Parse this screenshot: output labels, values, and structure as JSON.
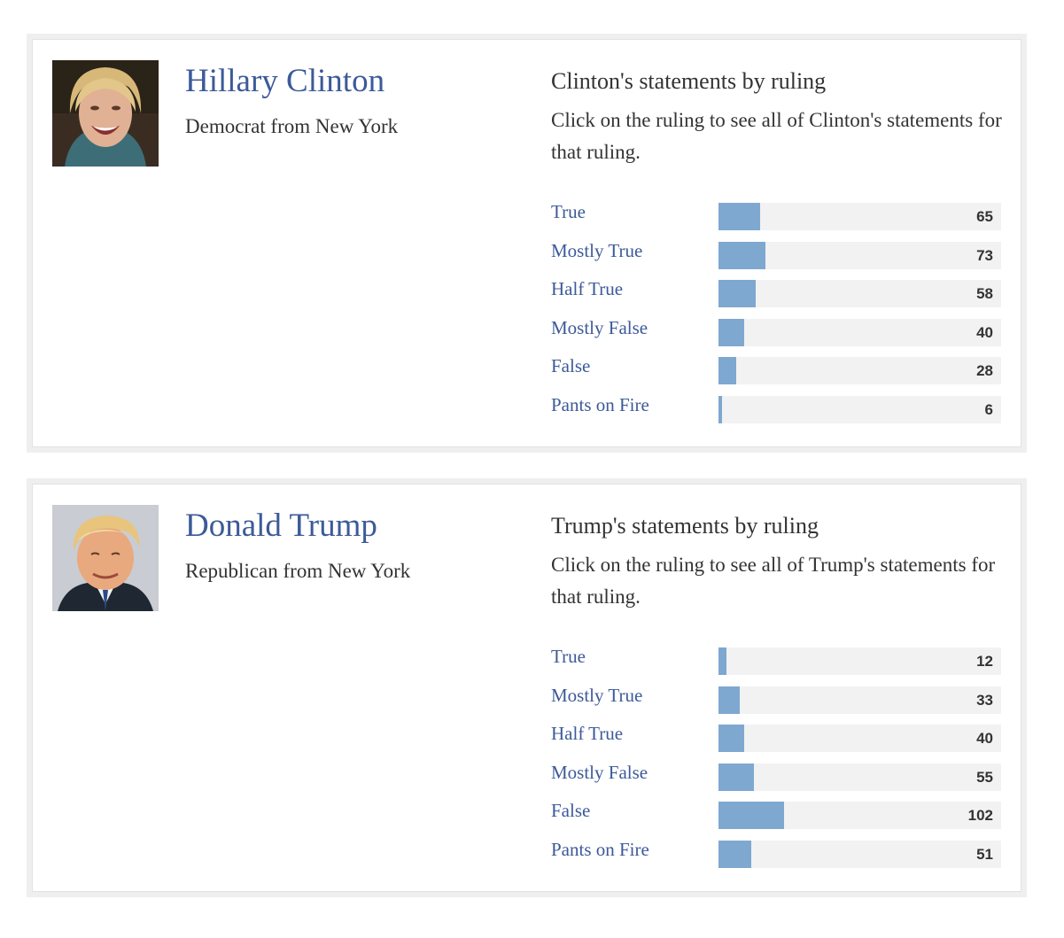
{
  "people": [
    {
      "name": "Hillary Clinton",
      "affiliation": "Democrat from New York",
      "portrait_icon": "portrait-photo",
      "stats_title": "Clinton's statements by ruling",
      "stats_description": "Click on the ruling to see all of Clinton's statements for that ruling.",
      "rulings": [
        {
          "label": "True",
          "count": "65"
        },
        {
          "label": "Mostly True",
          "count": "73"
        },
        {
          "label": "Half True",
          "count": "58"
        },
        {
          "label": "Mostly False",
          "count": "40"
        },
        {
          "label": "False",
          "count": "28"
        },
        {
          "label": "Pants on Fire",
          "count": "6"
        }
      ]
    },
    {
      "name": "Donald Trump",
      "affiliation": "Republican from New York",
      "portrait_icon": "portrait-photo",
      "stats_title": "Trump's statements by ruling",
      "stats_description": "Click on the ruling to see all of Trump's statements for that ruling.",
      "rulings": [
        {
          "label": "True",
          "count": "12"
        },
        {
          "label": "Mostly True",
          "count": "33"
        },
        {
          "label": "Half True",
          "count": "40"
        },
        {
          "label": "Mostly False",
          "count": "55"
        },
        {
          "label": "False",
          "count": "102"
        },
        {
          "label": "Pants on Fire",
          "count": "51"
        }
      ]
    }
  ],
  "bar_scale_max": 440,
  "colors": {
    "name_link": "#3c5a99",
    "bar_fill": "#7ea8d0",
    "bar_track": "#f2f2f2",
    "card_border": "#efefef",
    "text": "#333333"
  }
}
